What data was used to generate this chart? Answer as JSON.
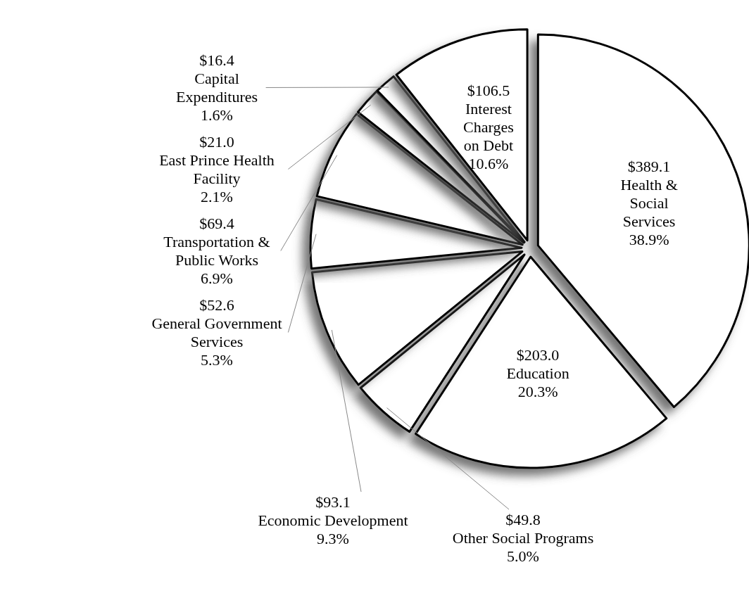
{
  "chart_data": {
    "type": "pie",
    "categories": [
      "Health & Social Services",
      "Education",
      "Other Social Programs",
      "Economic Development",
      "General Government Services",
      "Transportation & Public Works",
      "East Prince Health Facility",
      "Capital Expenditures",
      "Interest Charges on Debt"
    ],
    "values": [
      389.1,
      203.0,
      49.8,
      93.1,
      52.6,
      69.4,
      21.0,
      16.4,
      106.5
    ],
    "value_labels": [
      "$389.1",
      "$203.0",
      "$49.8",
      "$93.1",
      "$52.6",
      "$69.4",
      "$21.0",
      "$16.4",
      "$106.5"
    ],
    "annotations": [
      "38.9%",
      "20.3%",
      "5.0%",
      "9.3%",
      "5.3%",
      "6.9%",
      "2.1%",
      "1.6%",
      "10.6%"
    ],
    "colors": [
      "#ffffff",
      "#ffffff",
      "#ffffff",
      "#ffffff",
      "#ffffff",
      "#ffffff",
      "#ffffff",
      "#ffffff",
      "#ffffff"
    ],
    "legend": false
  }
}
